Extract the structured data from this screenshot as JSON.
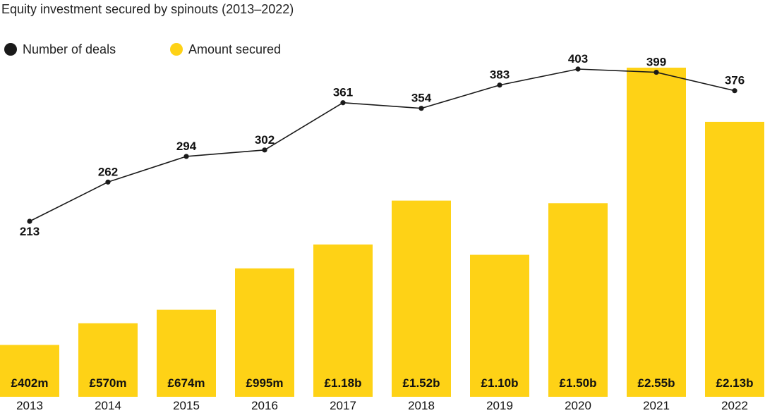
{
  "chart_data": {
    "type": "bar",
    "title": "Equity investment secured by spinouts (2013–2022)",
    "categories": [
      "2013",
      "2014",
      "2015",
      "2016",
      "2017",
      "2018",
      "2019",
      "2020",
      "2021",
      "2022"
    ],
    "legend": {
      "position": "top-left",
      "items": [
        {
          "label": "Number of deals",
          "color": "#1a1a1a",
          "marker": "circle"
        },
        {
          "label": "Amount secured",
          "color": "#fed216",
          "marker": "circle"
        }
      ]
    },
    "series": [
      {
        "name": "Amount secured",
        "type": "bar",
        "color": "#fed216",
        "values_gbp_m": [
          402,
          570,
          674,
          995,
          1180,
          1520,
          1100,
          1500,
          2550,
          2130
        ],
        "labels": [
          "£402m",
          "£570m",
          "£674m",
          "£995m",
          "£1.18b",
          "£1.52b",
          "£1.10b",
          "£1.50b",
          "£2.55b",
          "£2.13b"
        ]
      },
      {
        "name": "Number of deals",
        "type": "line",
        "color": "#1a1a1a",
        "values": [
          213,
          262,
          294,
          302,
          361,
          354,
          383,
          403,
          399,
          376
        ]
      }
    ],
    "grid": false
  }
}
